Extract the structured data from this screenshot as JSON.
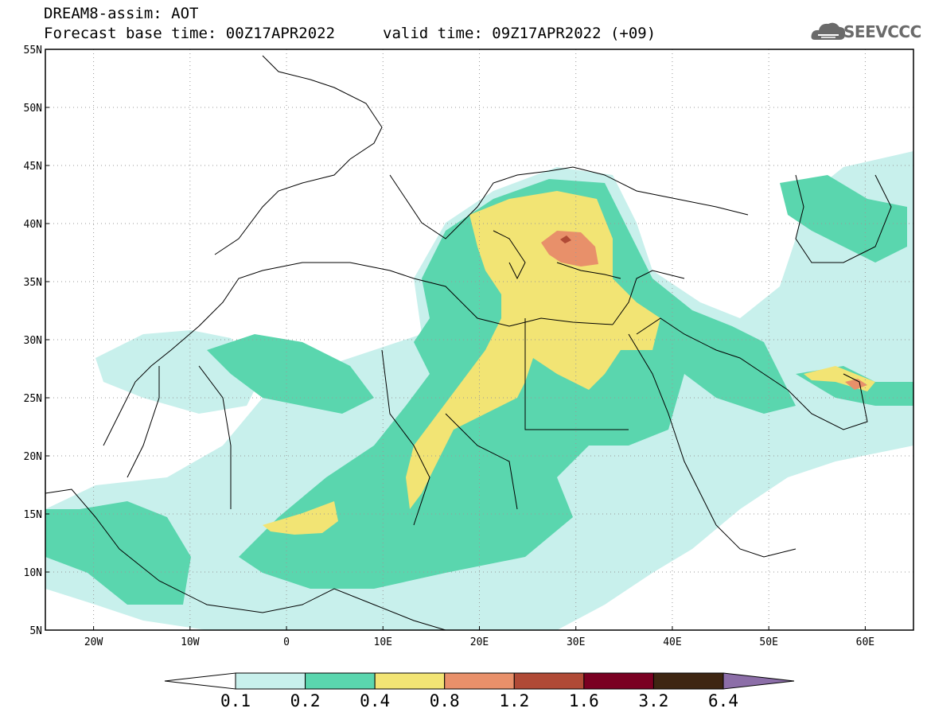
{
  "header": {
    "title_line1": "DREAM8-assim: AOT",
    "title_line2": "Forecast base time: 00Z17APR2022",
    "valid_time": "valid time: 09Z17APR2022 (+09)",
    "logo_text": "SEEVCCC",
    "logo_icon": "cloud-logo-icon"
  },
  "map": {
    "lon_range": [
      -25,
      65
    ],
    "lat_range": [
      5,
      55
    ],
    "lon_ticks": [
      {
        "value": -20,
        "label": "20W"
      },
      {
        "value": -10,
        "label": "10W"
      },
      {
        "value": 0,
        "label": "0"
      },
      {
        "value": 10,
        "label": "10E"
      },
      {
        "value": 20,
        "label": "20E"
      },
      {
        "value": 30,
        "label": "30E"
      },
      {
        "value": 40,
        "label": "40E"
      },
      {
        "value": 50,
        "label": "50E"
      },
      {
        "value": 60,
        "label": "60E"
      }
    ],
    "lat_ticks": [
      {
        "value": 55,
        "label": "55N"
      },
      {
        "value": 50,
        "label": "50N"
      },
      {
        "value": 45,
        "label": "45N"
      },
      {
        "value": 40,
        "label": "40N"
      },
      {
        "value": 35,
        "label": "35N"
      },
      {
        "value": 30,
        "label": "30N"
      },
      {
        "value": 25,
        "label": "25N"
      },
      {
        "value": 20,
        "label": "20N"
      },
      {
        "value": 15,
        "label": "15N"
      },
      {
        "value": 10,
        "label": "10N"
      },
      {
        "value": 5,
        "label": "5N"
      }
    ],
    "grid": "dotted"
  },
  "colorbar": {
    "bins": [
      {
        "color": "#c8f0ec"
      },
      {
        "color": "#5ad6ae"
      },
      {
        "color": "#f2e474"
      },
      {
        "color": "#e8906a"
      },
      {
        "color": "#b04a36"
      },
      {
        "color": "#7a0022"
      },
      {
        "color": "#3e2612"
      }
    ],
    "under_color": "#ffffff",
    "over_color": "#8c6ea8",
    "labels": [
      "0.1",
      "0.2",
      "0.4",
      "0.8",
      "1.2",
      "1.6",
      "3.2",
      "6.4"
    ]
  },
  "colors": {
    "c1": "#c8f0ec",
    "c2": "#5ad6ae",
    "c3": "#f2e474",
    "c4": "#e8906a",
    "c5": "#b04a36"
  }
}
